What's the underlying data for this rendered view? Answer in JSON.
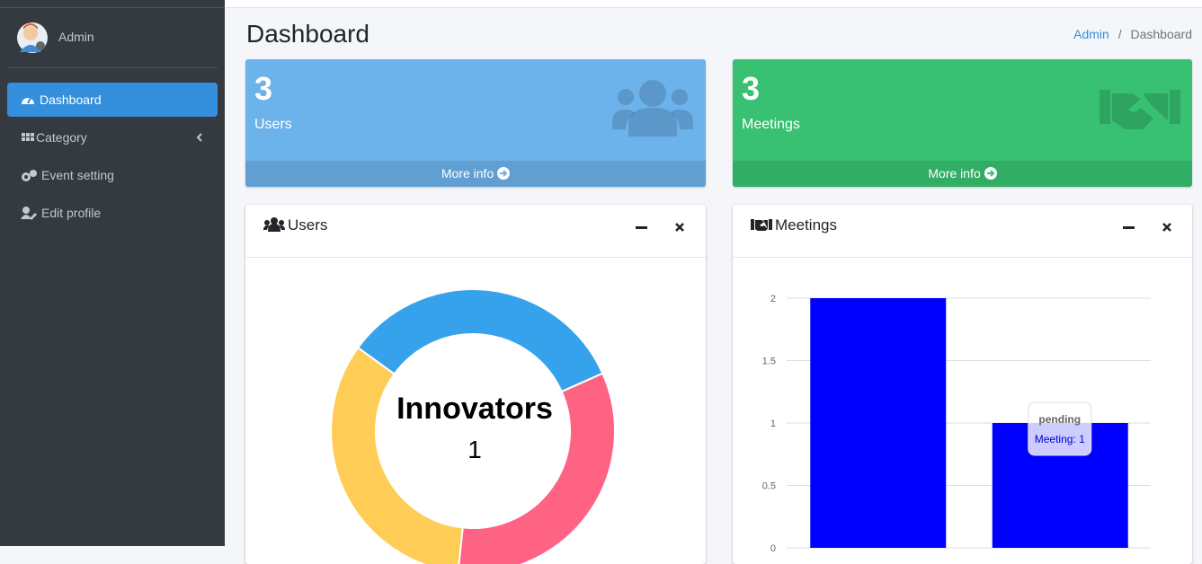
{
  "sidebar": {
    "user": "Admin",
    "menu": [
      "Dashboard",
      "Category",
      "Event setting",
      "Edit profile"
    ]
  },
  "header": {
    "title": "Dashboard",
    "breadcrumb": [
      "Admin",
      "Dashboard"
    ]
  },
  "info_boxes": [
    {
      "number": "3",
      "label": "Users",
      "link": "More info"
    },
    {
      "number": "3",
      "label": "Meetings",
      "link": "More info"
    }
  ],
  "cards": [
    "Users",
    "Meetings"
  ],
  "chart_data": [
    {
      "type": "doughnut",
      "categories": [
        null,
        null,
        "Innovators"
      ],
      "values": [
        1,
        1,
        1
      ],
      "colors": [
        "#36a2eb",
        "#ff6384",
        "#ffcd56"
      ]
    },
    {
      "type": "bar",
      "categories": [
        null,
        "pending"
      ],
      "series": [
        {
          "name": "Meeting",
          "color": "#0000ff",
          "values": [
            2,
            1
          ]
        }
      ],
      "ylim": [
        0,
        2
      ],
      "yticks": [
        0,
        0.5,
        1,
        1.5,
        2
      ],
      "grid": true,
      "tooltip": "Meeting: 1"
    }
  ]
}
